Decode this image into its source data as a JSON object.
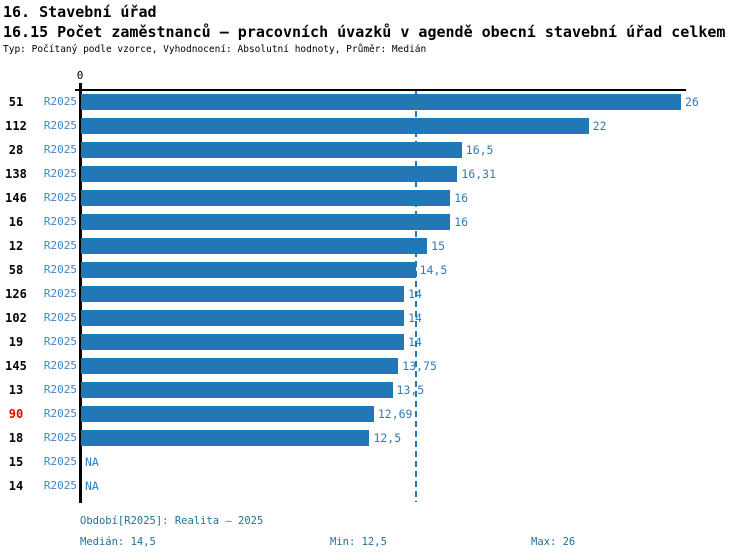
{
  "header": {
    "section_title": "16. Stavební úřad",
    "indicator_title": "16.15 Počet zaměstnanců – pracovních úvazků v agendě obecní stavební úřad celkem",
    "meta_line": "Typ: Počítaný podle vzorce, Vyhodnocení: Absolutní hodnoty, Průměr: Medián"
  },
  "colors": {
    "bar": "#2277b5",
    "period_label": "#4185c6",
    "value_label": "#2e7cb8",
    "footer_text": "#20719f",
    "highlight_id": "#e60000",
    "axis": "#000000",
    "median_line": "#2277b5"
  },
  "chart_data": {
    "type": "bar",
    "orientation": "horizontal",
    "axis_origin_label": "0",
    "xlim": [
      0,
      26
    ],
    "median_value": 14.5,
    "na_text": "NA",
    "rows": [
      {
        "id": "51",
        "period": "R2025",
        "value": 26,
        "value_label": "26",
        "highlight": false
      },
      {
        "id": "112",
        "period": "R2025",
        "value": 22,
        "value_label": "22",
        "highlight": false
      },
      {
        "id": "28",
        "period": "R2025",
        "value": 16.5,
        "value_label": "16,5",
        "highlight": false
      },
      {
        "id": "138",
        "period": "R2025",
        "value": 16.31,
        "value_label": "16,31",
        "highlight": false
      },
      {
        "id": "146",
        "period": "R2025",
        "value": 16,
        "value_label": "16",
        "highlight": false
      },
      {
        "id": "16",
        "period": "R2025",
        "value": 16,
        "value_label": "16",
        "highlight": false
      },
      {
        "id": "12",
        "period": "R2025",
        "value": 15,
        "value_label": "15",
        "highlight": false
      },
      {
        "id": "58",
        "period": "R2025",
        "value": 14.5,
        "value_label": "14,5",
        "highlight": false
      },
      {
        "id": "126",
        "period": "R2025",
        "value": 14,
        "value_label": "14",
        "highlight": false
      },
      {
        "id": "102",
        "period": "R2025",
        "value": 14,
        "value_label": "14",
        "highlight": false
      },
      {
        "id": "19",
        "period": "R2025",
        "value": 14,
        "value_label": "14",
        "highlight": false
      },
      {
        "id": "145",
        "period": "R2025",
        "value": 13.75,
        "value_label": "13,75",
        "highlight": false
      },
      {
        "id": "13",
        "period": "R2025",
        "value": 13.5,
        "value_label": "13,5",
        "highlight": false
      },
      {
        "id": "90",
        "period": "R2025",
        "value": 12.69,
        "value_label": "12,69",
        "highlight": true
      },
      {
        "id": "18",
        "period": "R2025",
        "value": 12.5,
        "value_label": "12,5",
        "highlight": false
      },
      {
        "id": "15",
        "period": "R2025",
        "value": null,
        "value_label": "NA",
        "highlight": false
      },
      {
        "id": "14",
        "period": "R2025",
        "value": null,
        "value_label": "NA",
        "highlight": false
      }
    ]
  },
  "footer": {
    "period_line": "Období[R2025]: Realita – 2025",
    "median_label": "Medián: 14,5",
    "min_label": "Min: 12,5",
    "max_label": "Max: 26"
  }
}
